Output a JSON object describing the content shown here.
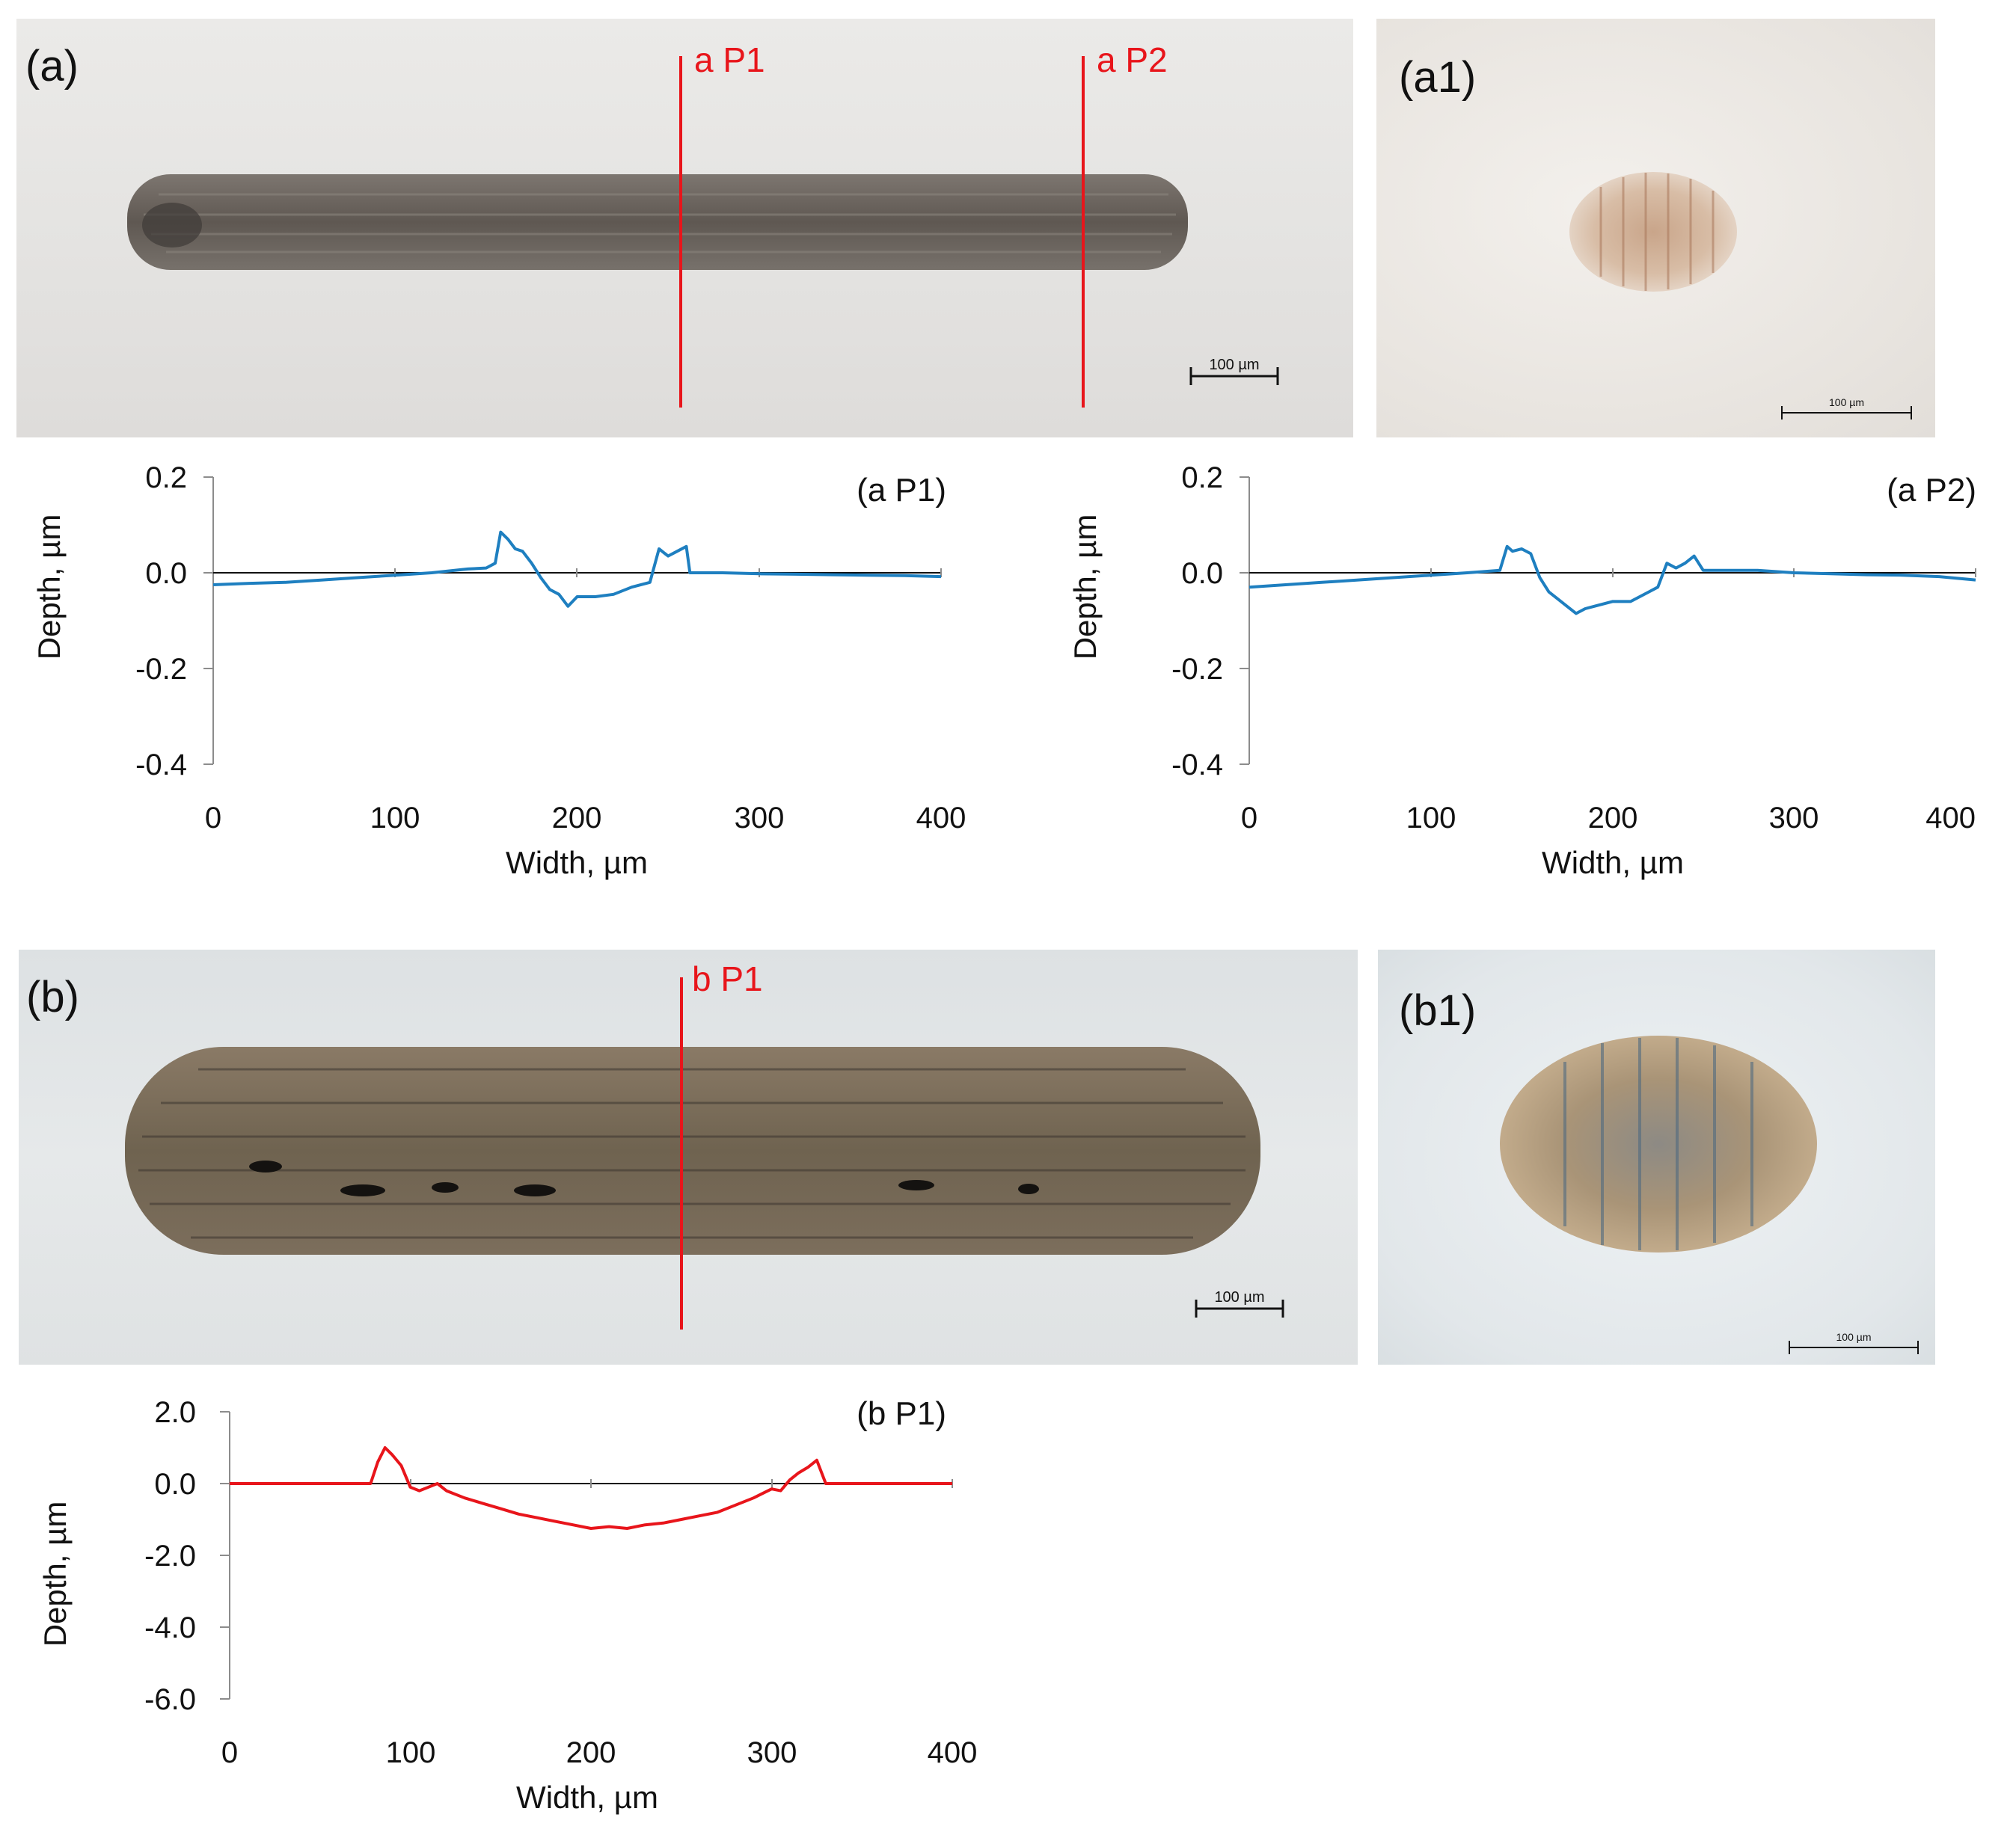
{
  "panels": {
    "a": {
      "label": "(a)",
      "profile_lines": [
        "a P1",
        "a P2"
      ],
      "scale_bar": "100 µm"
    },
    "a1": {
      "label": "(a1)",
      "scale_bar": "100 µm"
    },
    "b": {
      "label": "(b)",
      "profile_lines": [
        "b P1"
      ],
      "scale_bar": "100 µm"
    },
    "b1": {
      "label": "(b1)",
      "scale_bar": "100 µm"
    }
  },
  "colors": {
    "profile_line": "#e8151b",
    "series_a": "#1e7fc0",
    "series_b": "#e8151b"
  },
  "chart_data": [
    {
      "type": "line",
      "title": "(a P1)",
      "xlabel": "Width, µm",
      "ylabel": "Depth, µm",
      "xlim": [
        0,
        400
      ],
      "ylim": [
        -0.4,
        0.2
      ],
      "xticks": [
        "0",
        "100",
        "200",
        "300",
        "400"
      ],
      "yticks": [
        "0.2",
        "0.0",
        "-0.2",
        "-0.4"
      ],
      "series": [
        {
          "color": "#1e7fc0",
          "x": [
            0,
            20,
            40,
            60,
            80,
            100,
            120,
            140,
            150,
            155,
            158,
            162,
            166,
            170,
            175,
            180,
            185,
            190,
            195,
            200,
            210,
            220,
            230,
            240,
            245,
            250,
            255,
            260,
            262,
            265,
            280,
            300,
            320,
            340,
            360,
            380,
            400
          ],
          "y": [
            -0.025,
            -0.022,
            -0.02,
            -0.015,
            -0.01,
            -0.005,
            0.0,
            0.008,
            0.01,
            0.02,
            0.085,
            0.07,
            0.05,
            0.045,
            0.02,
            -0.01,
            -0.035,
            -0.045,
            -0.07,
            -0.05,
            -0.05,
            -0.045,
            -0.03,
            -0.02,
            0.05,
            0.035,
            0.045,
            0.055,
            0.0,
            0.0,
            0.0,
            -0.002,
            -0.003,
            -0.004,
            -0.005,
            -0.006,
            -0.008
          ]
        }
      ]
    },
    {
      "type": "line",
      "title": "(a P2)",
      "xlabel": "Width, µm",
      "ylabel": "Depth, µm",
      "xlim": [
        0,
        400
      ],
      "ylim": [
        -0.4,
        0.2
      ],
      "xticks": [
        "0",
        "100",
        "200",
        "300",
        "400"
      ],
      "yticks": [
        "0.2",
        "0.0",
        "-0.2",
        "-0.4"
      ],
      "series": [
        {
          "color": "#1e7fc0",
          "x": [
            0,
            20,
            40,
            60,
            80,
            100,
            120,
            138,
            142,
            145,
            150,
            155,
            160,
            165,
            170,
            175,
            180,
            185,
            190,
            200,
            210,
            220,
            225,
            230,
            235,
            240,
            245,
            250,
            260,
            280,
            300,
            320,
            340,
            360,
            380,
            400
          ],
          "y": [
            -0.03,
            -0.025,
            -0.02,
            -0.015,
            -0.01,
            -0.005,
            0.0,
            0.005,
            0.055,
            0.045,
            0.05,
            0.04,
            -0.01,
            -0.04,
            -0.055,
            -0.07,
            -0.085,
            -0.075,
            -0.07,
            -0.06,
            -0.06,
            -0.04,
            -0.03,
            0.02,
            0.01,
            0.02,
            0.035,
            0.005,
            0.005,
            0.005,
            0.0,
            -0.002,
            -0.004,
            -0.005,
            -0.008,
            -0.015
          ]
        }
      ]
    },
    {
      "type": "line",
      "title": "(b P1)",
      "xlabel": "Width, µm",
      "ylabel": "Depth, µm",
      "xlim": [
        0,
        400
      ],
      "ylim": [
        -6.0,
        2.0
      ],
      "xticks": [
        "0",
        "100",
        "200",
        "300",
        "400"
      ],
      "yticks": [
        "2.0",
        "0.0",
        "-2.0",
        "-4.0",
        "-6.0"
      ],
      "series": [
        {
          "color": "#e8151b",
          "x": [
            0,
            60,
            78,
            82,
            86,
            90,
            95,
            100,
            105,
            110,
            115,
            120,
            130,
            140,
            150,
            160,
            170,
            180,
            190,
            200,
            210,
            220,
            230,
            240,
            250,
            260,
            270,
            280,
            290,
            300,
            305,
            310,
            315,
            320,
            325,
            330,
            340,
            360,
            400
          ],
          "y": [
            0.0,
            0.0,
            0.0,
            0.6,
            1.0,
            0.8,
            0.5,
            -0.1,
            -0.2,
            -0.1,
            0.0,
            -0.2,
            -0.4,
            -0.55,
            -0.7,
            -0.85,
            -0.95,
            -1.05,
            -1.15,
            -1.25,
            -1.2,
            -1.25,
            -1.15,
            -1.1,
            -1.0,
            -0.9,
            -0.8,
            -0.6,
            -0.4,
            -0.15,
            -0.2,
            0.1,
            0.3,
            0.45,
            0.65,
            0.0,
            0.0,
            0.0,
            0.0
          ]
        }
      ]
    }
  ]
}
